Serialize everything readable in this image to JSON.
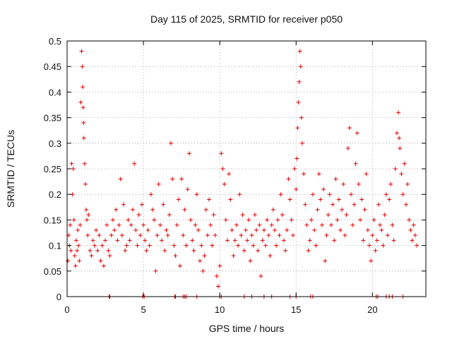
{
  "chart_data": {
    "type": "scatter",
    "title": "Day 115 of 2025, SRMTID for receiver p050",
    "xlabel": "GPS time / hours",
    "ylabel": "SRMTID / TECUs",
    "xlim": [
      0,
      23.5
    ],
    "ylim": [
      0,
      0.5
    ],
    "x_ticks": [
      0,
      5,
      10,
      15,
      20
    ],
    "x_tick_labels": [
      "0",
      "5",
      "10",
      "15",
      "20"
    ],
    "y_ticks": [
      0,
      0.05,
      0.1,
      0.15,
      0.2,
      0.25,
      0.3,
      0.35,
      0.4,
      0.45,
      0.5
    ],
    "y_tick_labels": [
      "0",
      "0.05",
      "0.1",
      "0.15",
      "0.2",
      "0.25",
      "0.3",
      "0.35",
      "0.4",
      "0.45",
      "0.5"
    ],
    "grid": true,
    "marker": "+",
    "color": "#e00000",
    "series": [
      {
        "name": "SRMTID",
        "points": [
          [
            0.05,
            0.07
          ],
          [
            0.1,
            0.12
          ],
          [
            0.15,
            0.1
          ],
          [
            0.2,
            0.14
          ],
          [
            0.25,
            0.09
          ],
          [
            0.3,
            0.26
          ],
          [
            0.35,
            0.2
          ],
          [
            0.4,
            0.25
          ],
          [
            0.45,
            0.15
          ],
          [
            0.5,
            0.08
          ],
          [
            0.55,
            0.06
          ],
          [
            0.6,
            0.11
          ],
          [
            0.65,
            0.09
          ],
          [
            0.7,
            0.13
          ],
          [
            0.75,
            0.1
          ],
          [
            0.8,
            0.07
          ],
          [
            0.85,
            0.14
          ],
          [
            0.9,
            0.38
          ],
          [
            0.95,
            0.48
          ],
          [
            1.0,
            0.45
          ],
          [
            1.02,
            0.41
          ],
          [
            1.05,
            0.37
          ],
          [
            1.08,
            0.34
          ],
          [
            1.1,
            0.31
          ],
          [
            1.15,
            0.26
          ],
          [
            1.2,
            0.22
          ],
          [
            1.25,
            0.17
          ],
          [
            1.3,
            0.15
          ],
          [
            1.35,
            0.12
          ],
          [
            1.4,
            0.16
          ],
          [
            1.5,
            0.09
          ],
          [
            1.6,
            0.08
          ],
          [
            1.7,
            0.11
          ],
          [
            1.8,
            0.1
          ],
          [
            1.9,
            0.13
          ],
          [
            2.0,
            0.09
          ],
          [
            2.1,
            0.12
          ],
          [
            2.2,
            0.07
          ],
          [
            2.3,
            0.1
          ],
          [
            2.4,
            0.06
          ],
          [
            2.5,
            0.11
          ],
          [
            2.6,
            0.14
          ],
          [
            2.7,
            0.09
          ],
          [
            2.8,
            0.08
          ],
          [
            2.9,
            0.12
          ],
          [
            3.0,
            0.15
          ],
          [
            3.1,
            0.13
          ],
          [
            3.2,
            0.17
          ],
          [
            3.3,
            0.11
          ],
          [
            3.4,
            0.14
          ],
          [
            3.5,
            0.23
          ],
          [
            3.6,
            0.12
          ],
          [
            3.7,
            0.18
          ],
          [
            3.8,
            0.09
          ],
          [
            3.9,
            0.1
          ],
          [
            4.0,
            0.15
          ],
          [
            4.1,
            0.11
          ],
          [
            4.2,
            0.14
          ],
          [
            4.3,
            0.17
          ],
          [
            4.4,
            0.26
          ],
          [
            4.5,
            0.13
          ],
          [
            4.6,
            0.1
          ],
          [
            4.7,
            0.16
          ],
          [
            4.8,
            0.12
          ],
          [
            4.9,
            0.18
          ],
          [
            5.0,
            0.14
          ],
          [
            5.1,
            0.11
          ],
          [
            5.2,
            0.09
          ],
          [
            5.3,
            0.13
          ],
          [
            5.4,
            0.1
          ],
          [
            5.5,
            0.2
          ],
          [
            5.6,
            0.17
          ],
          [
            5.7,
            0.15
          ],
          [
            5.8,
            0.05
          ],
          [
            5.9,
            0.12
          ],
          [
            6.0,
            0.22
          ],
          [
            6.1,
            0.14
          ],
          [
            6.2,
            0.11
          ],
          [
            6.3,
            0.18
          ],
          [
            6.4,
            0.09
          ],
          [
            6.5,
            0.13
          ],
          [
            6.6,
            0.12
          ],
          [
            6.7,
            0.16
          ],
          [
            6.8,
            0.3
          ],
          [
            6.9,
            0.23
          ],
          [
            7.0,
            0.1
          ],
          [
            7.1,
            0.08
          ],
          [
            7.2,
            0.14
          ],
          [
            7.3,
            0.19
          ],
          [
            7.4,
            0.06
          ],
          [
            7.5,
            0.23
          ],
          [
            7.6,
            0.12
          ],
          [
            7.7,
            0.17
          ],
          [
            7.8,
            0.1
          ],
          [
            7.9,
            0.21
          ],
          [
            8.0,
            0.28
          ],
          [
            8.1,
            0.15
          ],
          [
            8.2,
            0.11
          ],
          [
            8.3,
            0.09
          ],
          [
            8.4,
            0.14
          ],
          [
            8.5,
            0.2
          ],
          [
            8.6,
            0.13
          ],
          [
            8.7,
            0.07
          ],
          [
            8.8,
            0.1
          ],
          [
            8.9,
            0.05
          ],
          [
            9.0,
            0.08
          ],
          [
            9.1,
            0.17
          ],
          [
            9.2,
            0.12
          ],
          [
            9.3,
            0.19
          ],
          [
            9.4,
            0.14
          ],
          [
            9.5,
            0.1
          ],
          [
            9.6,
            0.16
          ],
          [
            9.7,
            0.12
          ],
          [
            9.8,
            0.04
          ],
          [
            9.9,
            0.02
          ],
          [
            10.0,
            0.06
          ],
          [
            10.1,
            0.28
          ],
          [
            10.2,
            0.25
          ],
          [
            10.3,
            0.22
          ],
          [
            10.4,
            0.15
          ],
          [
            10.5,
            0.11
          ],
          [
            10.6,
            0.24
          ],
          [
            10.7,
            0.19
          ],
          [
            10.8,
            0.13
          ],
          [
            10.9,
            0.08
          ],
          [
            11.0,
            0.11
          ],
          [
            11.1,
            0.14
          ],
          [
            11.2,
            0.1
          ],
          [
            11.3,
            0.2
          ],
          [
            11.4,
            0.12
          ],
          [
            11.5,
            0.16
          ],
          [
            11.6,
            0.09
          ],
          [
            11.7,
            0.13
          ],
          [
            11.8,
            0.11
          ],
          [
            11.9,
            0.15
          ],
          [
            12.0,
            0.07
          ],
          [
            12.1,
            0.12
          ],
          [
            12.2,
            0.1
          ],
          [
            12.3,
            0.16
          ],
          [
            12.4,
            0.13
          ],
          [
            12.5,
            0.09
          ],
          [
            12.6,
            0.14
          ],
          [
            12.7,
            0.04
          ],
          [
            12.8,
            0.11
          ],
          [
            12.9,
            0.13
          ],
          [
            13.0,
            0.1
          ],
          [
            13.1,
            0.15
          ],
          [
            13.2,
            0.12
          ],
          [
            13.3,
            0.08
          ],
          [
            13.4,
            0.14
          ],
          [
            13.5,
            0.17
          ],
          [
            13.6,
            0.13
          ],
          [
            13.7,
            0.1
          ],
          [
            13.8,
            0.15
          ],
          [
            13.9,
            0.12
          ],
          [
            14.0,
            0.2
          ],
          [
            14.1,
            0.16
          ],
          [
            14.2,
            0.11
          ],
          [
            14.3,
            0.09
          ],
          [
            14.4,
            0.13
          ],
          [
            14.5,
            0.23
          ],
          [
            14.6,
            0.19
          ],
          [
            14.7,
            0.15
          ],
          [
            14.8,
            0.12
          ],
          [
            14.9,
            0.25
          ],
          [
            15.0,
            0.21
          ],
          [
            15.05,
            0.27
          ],
          [
            15.1,
            0.33
          ],
          [
            15.15,
            0.38
          ],
          [
            15.2,
            0.42
          ],
          [
            15.25,
            0.48
          ],
          [
            15.3,
            0.45
          ],
          [
            15.35,
            0.35
          ],
          [
            15.4,
            0.3
          ],
          [
            15.5,
            0.24
          ],
          [
            15.6,
            0.18
          ],
          [
            15.7,
            0.14
          ],
          [
            15.8,
            0.09
          ],
          [
            15.9,
            0.11
          ],
          [
            16.0,
            0.15
          ],
          [
            16.1,
            0.2
          ],
          [
            16.2,
            0.13
          ],
          [
            16.3,
            0.1
          ],
          [
            16.4,
            0.17
          ],
          [
            16.5,
            0.24
          ],
          [
            16.6,
            0.19
          ],
          [
            16.7,
            0.14
          ],
          [
            16.8,
            0.21
          ],
          [
            16.9,
            0.07
          ],
          [
            17.0,
            0.12
          ],
          [
            17.1,
            0.16
          ],
          [
            17.2,
            0.2
          ],
          [
            17.3,
            0.14
          ],
          [
            17.4,
            0.18
          ],
          [
            17.5,
            0.11
          ],
          [
            17.6,
            0.23
          ],
          [
            17.7,
            0.15
          ],
          [
            17.8,
            0.19
          ],
          [
            17.9,
            0.13
          ],
          [
            18.0,
            0.17
          ],
          [
            18.1,
            0.22
          ],
          [
            18.2,
            0.12
          ],
          [
            18.3,
            0.16
          ],
          [
            18.4,
            0.29
          ],
          [
            18.5,
            0.33
          ],
          [
            18.6,
            0.2
          ],
          [
            18.7,
            0.14
          ],
          [
            18.8,
            0.18
          ],
          [
            18.9,
            0.26
          ],
          [
            19.0,
            0.32
          ],
          [
            19.1,
            0.22
          ],
          [
            19.2,
            0.15
          ],
          [
            19.3,
            0.19
          ],
          [
            19.4,
            0.11
          ],
          [
            19.5,
            0.17
          ],
          [
            19.6,
            0.24
          ],
          [
            19.7,
            0.13
          ],
          [
            19.8,
            0.1
          ],
          [
            19.9,
            0.07
          ],
          [
            20.0,
            0.12
          ],
          [
            20.1,
            0.15
          ],
          [
            20.2,
            0.09
          ],
          [
            20.3,
            0.11
          ],
          [
            20.4,
            0.18
          ],
          [
            20.5,
            0.14
          ],
          [
            20.6,
            0.13
          ],
          [
            20.7,
            0.1
          ],
          [
            20.8,
            0.16
          ],
          [
            20.9,
            0.2
          ],
          [
            21.0,
            0.12
          ],
          [
            21.1,
            0.19
          ],
          [
            21.2,
            0.22
          ],
          [
            21.3,
            0.14
          ],
          [
            21.4,
            0.11
          ],
          [
            21.5,
            0.25
          ],
          [
            21.6,
            0.32
          ],
          [
            21.7,
            0.36
          ],
          [
            21.75,
            0.31
          ],
          [
            21.8,
            0.29
          ],
          [
            21.9,
            0.24
          ],
          [
            22.0,
            0.2
          ],
          [
            22.1,
            0.26
          ],
          [
            22.2,
            0.18
          ],
          [
            22.3,
            0.22
          ],
          [
            22.4,
            0.15
          ],
          [
            22.5,
            0.13
          ],
          [
            22.6,
            0.11
          ],
          [
            22.7,
            0.14
          ],
          [
            22.8,
            0.12
          ],
          [
            22.9,
            0.1
          ],
          [
            2.75,
            0
          ],
          [
            2.8,
            0
          ],
          [
            4.95,
            0
          ],
          [
            5.05,
            0
          ],
          [
            7.05,
            0
          ],
          [
            7.1,
            0
          ],
          [
            7.6,
            0
          ],
          [
            7.7,
            0
          ],
          [
            7.8,
            0
          ],
          [
            8.5,
            0
          ],
          [
            10.0,
            0
          ],
          [
            10.1,
            0
          ],
          [
            11.6,
            0
          ],
          [
            12.1,
            0
          ],
          [
            12.9,
            0
          ],
          [
            13.4,
            0
          ],
          [
            14.6,
            0
          ],
          [
            15.0,
            0
          ],
          [
            15.95,
            0
          ],
          [
            16.1,
            0
          ],
          [
            20.25,
            0
          ],
          [
            20.35,
            0
          ],
          [
            20.9,
            0
          ],
          [
            21.1,
            0
          ],
          [
            21.3,
            0
          ],
          [
            22.0,
            0
          ]
        ]
      }
    ]
  }
}
